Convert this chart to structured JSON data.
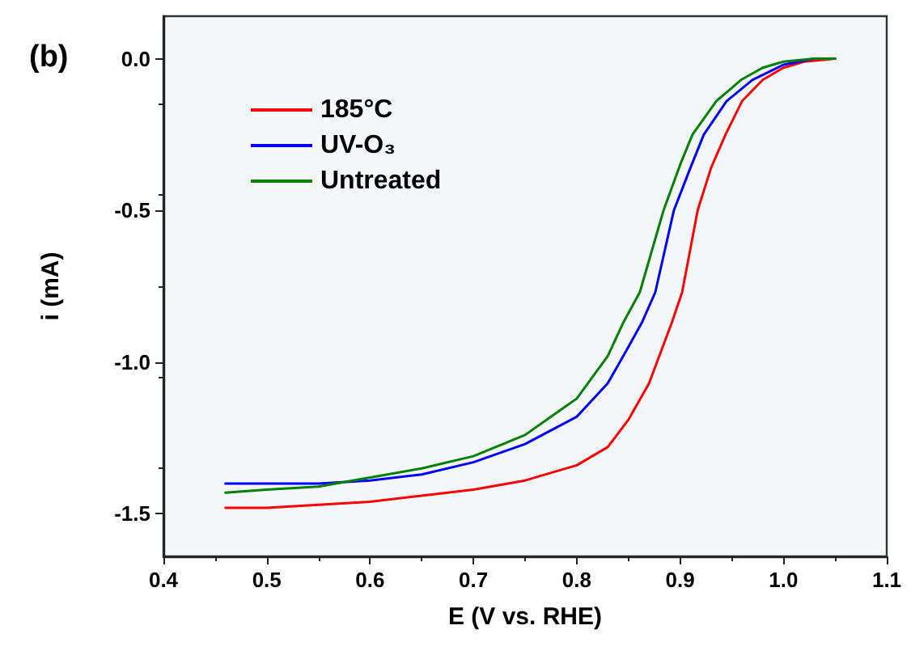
{
  "chart_data": {
    "type": "line",
    "xlabel": "E (V vs. RHE)",
    "ylabel": "i (mA)",
    "annotations": [
      "(b)"
    ],
    "xlim": [
      0.4,
      1.1
    ],
    "xticks": [
      0.4,
      0.5,
      0.6,
      0.7,
      0.8,
      0.9,
      {
        "value": 1,
        "label": "1.0"
      },
      1.1
    ],
    "ylim": [
      -1.64,
      0.14
    ],
    "yticks": [
      {
        "value": 0,
        "label": "0.0"
      },
      -0.5,
      {
        "value": -1,
        "label": "-1.0"
      },
      -1.5
    ],
    "grid": false,
    "legend": "top left",
    "marker": "none",
    "line_style": "solid",
    "series": [
      {
        "name": "185°C",
        "color": "#ff0000",
        "x": [
          0.46,
          0.5,
          0.55,
          0.6,
          0.65,
          0.7,
          0.75,
          0.8,
          0.83,
          0.85,
          0.87,
          0.892,
          0.902,
          0.917,
          0.93,
          0.944,
          0.96,
          0.98,
          1.0,
          1.02,
          1.05
        ],
        "values": [
          -1.48,
          -1.48,
          -1.47,
          -1.46,
          -1.44,
          -1.42,
          -1.39,
          -1.34,
          -1.28,
          -1.19,
          -1.07,
          -0.87,
          -0.77,
          -0.5,
          -0.36,
          -0.25,
          -0.14,
          -0.07,
          -0.03,
          -0.01,
          0
        ]
      },
      {
        "name": "UV-O₃",
        "color": "#0000ff",
        "x": [
          0.46,
          0.5,
          0.55,
          0.6,
          0.65,
          0.7,
          0.75,
          0.8,
          0.83,
          0.85,
          0.863,
          0.876,
          0.894,
          0.91,
          0.923,
          0.945,
          0.97,
          1.0,
          1.03,
          1.05
        ],
        "values": [
          -1.4,
          -1.4,
          -1.4,
          -1.39,
          -1.37,
          -1.33,
          -1.27,
          -1.18,
          -1.07,
          -0.95,
          -0.87,
          -0.77,
          -0.5,
          -0.36,
          -0.25,
          -0.14,
          -0.07,
          -0.02,
          0,
          0
        ]
      },
      {
        "name": "Untreated",
        "color": "#008000",
        "x": [
          0.46,
          0.5,
          0.55,
          0.6,
          0.65,
          0.7,
          0.75,
          0.8,
          0.83,
          0.845,
          0.861,
          0.884,
          0.9,
          0.912,
          0.935,
          0.959,
          0.98,
          1.0,
          1.03,
          1.05
        ],
        "values": [
          -1.43,
          -1.42,
          -1.41,
          -1.38,
          -1.35,
          -1.31,
          -1.24,
          -1.12,
          -0.98,
          -0.87,
          -0.77,
          -0.5,
          -0.35,
          -0.25,
          -0.14,
          -0.07,
          -0.03,
          -0.01,
          0,
          0
        ]
      }
    ]
  }
}
